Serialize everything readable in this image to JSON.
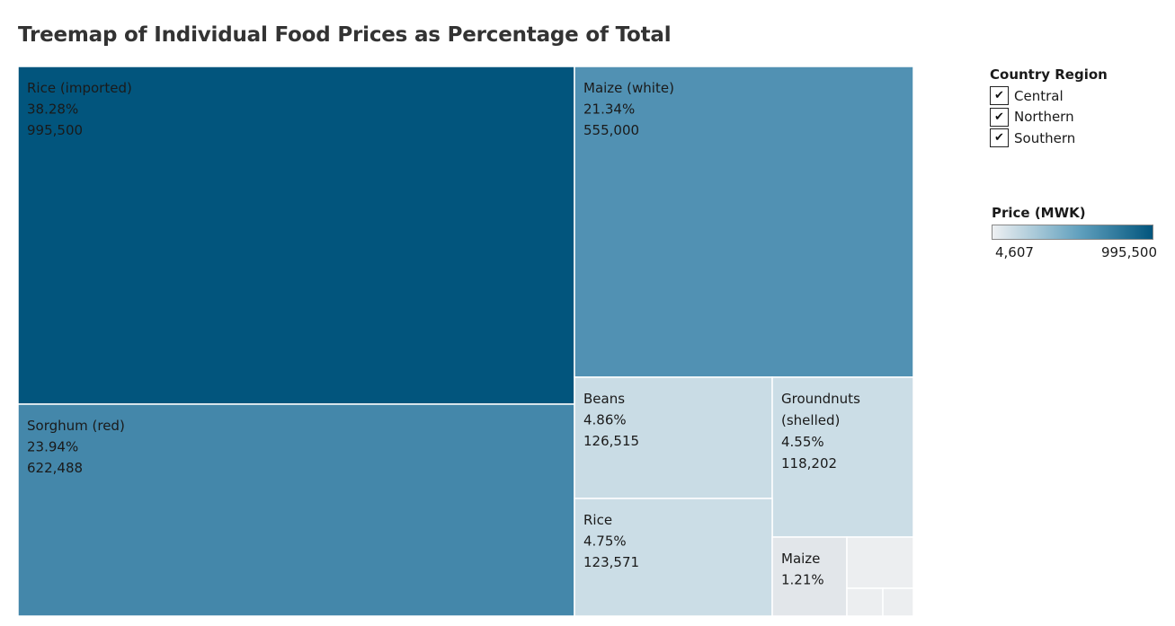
{
  "chart_data": {
    "type": "treemap",
    "title": "Treemap of Individual Food Prices as Percentage of Total",
    "items": [
      {
        "name": "Rice (imported)",
        "lines": [
          "Rice (imported)"
        ],
        "percent": "38.28%",
        "value": 995500,
        "value_label": "995,500",
        "color": "#02557d"
      },
      {
        "name": "Sorghum (red)",
        "lines": [
          "Sorghum (red)"
        ],
        "percent": "23.94%",
        "value": 622488,
        "value_label": "622,488",
        "color": "#4487aa"
      },
      {
        "name": "Maize (white)",
        "lines": [
          "Maize (white)"
        ],
        "percent": "21.34%",
        "value": 555000,
        "value_label": "555,000",
        "color": "#5191b3"
      },
      {
        "name": "Beans",
        "lines": [
          "Beans"
        ],
        "percent": "4.86%",
        "value": 126515,
        "value_label": "126,515",
        "color": "#c9dce5"
      },
      {
        "name": "Groundnuts (shelled)",
        "lines": [
          "Groundnuts",
          "(shelled)"
        ],
        "percent": "4.55%",
        "value": 118202,
        "value_label": "118,202",
        "color": "#cbdde6"
      },
      {
        "name": "Rice",
        "lines": [
          "Rice"
        ],
        "percent": "4.75%",
        "value": 123571,
        "value_label": "123,571",
        "color": "#cbdde6"
      },
      {
        "name": "Maize",
        "lines": [
          "Maize"
        ],
        "percent": "1.21%",
        "value": null,
        "value_label": "",
        "color": "#e2e6ea"
      },
      {
        "name": "",
        "lines": [],
        "percent": "",
        "value": null,
        "value_label": "",
        "color": "#eceef0"
      },
      {
        "name": "",
        "lines": [],
        "percent": "",
        "value": null,
        "value_label": "",
        "color": "#eceef0"
      },
      {
        "name": "",
        "lines": [],
        "percent": "",
        "value": null,
        "value_label": "",
        "color": "#eceef0"
      }
    ],
    "color_legend": {
      "title": "Price (MWK)",
      "min_label": "4,607",
      "max_label": "995,500",
      "min_color": "#eef0f2",
      "max_color": "#02557d"
    },
    "filter_legend": {
      "title": "Country Region",
      "items": [
        {
          "label": "Central",
          "checked": true
        },
        {
          "label": "Northern",
          "checked": true
        },
        {
          "label": "Southern",
          "checked": true
        }
      ]
    }
  },
  "check_glyph": "✔"
}
